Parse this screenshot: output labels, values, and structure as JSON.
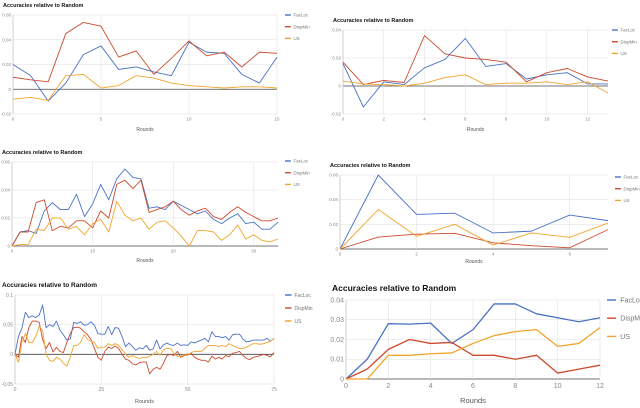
{
  "colors": {
    "FacLoc": "#4a72c4",
    "DispMin": "#cc4b2e",
    "US": "#f2a52e"
  },
  "chart_data": [
    {
      "type": "line",
      "title": "Accuracies relative to Random",
      "xlabel": "Rounds",
      "ylabel": "",
      "xlim": [
        0,
        15
      ],
      "ylim": [
        -0.02,
        0.06
      ],
      "xticks": [
        0,
        5,
        10,
        15
      ],
      "yticks": [
        -0.02,
        0,
        0.02,
        0.04,
        0.06
      ],
      "grid": true,
      "legend": "right",
      "x": [
        0,
        1,
        2,
        3,
        4,
        5,
        6,
        7,
        8,
        9,
        10,
        11,
        12,
        13,
        14,
        15
      ],
      "series": [
        {
          "name": "FacLoc",
          "values": [
            0.02,
            0.011,
            -0.0095,
            0.005,
            0.028,
            0.035,
            0.016,
            0.018,
            0.014,
            0.011,
            0.038,
            0.03,
            0.029,
            0.012,
            0.005,
            0.026
          ]
        },
        {
          "name": "DispMin",
          "values": [
            0.0097,
            0.0076,
            0.006,
            0.045,
            0.054,
            0.051,
            0.026,
            0.031,
            0.012,
            0.025,
            0.039,
            0.027,
            0.03,
            0.018,
            0.03,
            0.029
          ]
        },
        {
          "name": "US",
          "values": [
            -0.008,
            -0.0065,
            -0.009,
            0.011,
            0.012,
            0.001,
            0.003,
            0.011,
            0.009,
            0.005,
            0.003,
            0.002,
            0.001,
            0.002,
            0.002,
            0.001
          ]
        }
      ]
    },
    {
      "type": "line",
      "title": "Accuracies relative to Random",
      "xlabel": "Rounds",
      "ylabel": "",
      "xlim": [
        0,
        13
      ],
      "ylim": [
        -0.02,
        0.04
      ],
      "xticks": [
        0,
        2,
        4,
        6,
        8,
        10,
        12
      ],
      "yticks": [
        -0.02,
        0,
        0.02,
        0.04
      ],
      "grid": true,
      "legend": "right",
      "x": [
        0,
        1,
        2,
        3,
        4,
        5,
        6,
        7,
        8,
        9,
        10,
        11,
        12,
        13
      ],
      "series": [
        {
          "name": "FacLoc",
          "values": [
            0.016,
            -0.015,
            0.003,
            0.001,
            0.013,
            0.019,
            0.034,
            0.014,
            0.016,
            0.005,
            0.008,
            0.0095,
            0.0015,
            0.0015
          ]
        },
        {
          "name": "DispMin",
          "values": [
            0.017,
            0.001,
            0.004,
            0.0025,
            0.036,
            0.023,
            0.02,
            0.019,
            0.017,
            0.003,
            0.0095,
            0.0125,
            0.0065,
            0.0035
          ]
        },
        {
          "name": "US",
          "values": [
            0.0035,
            0.0015,
            0.001,
            0,
            0.002,
            0.006,
            0.008,
            0.001,
            0.002,
            0.002,
            0.003,
            0.001,
            0.003,
            -0.005
          ]
        }
      ]
    },
    {
      "type": "line",
      "title": "Accuracies relative to Random",
      "xlabel": "Rounds",
      "ylabel": "",
      "xlim": [
        0,
        33
      ],
      "ylim": [
        0,
        0.06
      ],
      "xticks": [
        0,
        10,
        20,
        30
      ],
      "yticks": [
        0,
        0.02,
        0.04,
        0.06
      ],
      "grid": true,
      "legend": "right",
      "x": [
        0,
        1,
        2,
        3,
        4,
        5,
        6,
        7,
        8,
        9,
        10,
        11,
        12,
        13,
        14,
        15,
        16,
        17,
        18,
        19,
        20,
        21,
        22,
        23,
        24,
        25,
        26,
        27,
        28,
        29,
        30,
        31,
        32,
        33
      ],
      "series": [
        {
          "name": "FacLoc",
          "values": [
            0,
            0.01,
            0.011,
            0.009,
            0.025,
            0.031,
            0.026,
            0.026,
            0.037,
            0.021,
            0.03,
            0.044,
            0.033,
            0.048,
            0.055,
            0.049,
            0.048,
            0.027,
            0.028,
            0.026,
            0.032,
            0.029,
            0.026,
            0.023,
            0.025,
            0.019,
            0.016,
            0.02,
            0.023,
            0.016,
            0.017,
            0.012,
            0.012,
            0.017
          ]
        },
        {
          "name": "DispMin",
          "values": [
            0,
            0.01,
            0.01,
            0.031,
            0.033,
            0.011,
            0.014,
            0.013,
            0.018,
            0.018,
            0.013,
            0.025,
            0.02,
            0.044,
            0.047,
            0.041,
            0.047,
            0.024,
            0.026,
            0.028,
            0.032,
            0.026,
            0.022,
            0.025,
            0.027,
            0.021,
            0.019,
            0.024,
            0.028,
            0.024,
            0.021,
            0.018,
            0.018,
            0.02
          ]
        },
        {
          "name": "US",
          "values": [
            0,
            0.001,
            0.001,
            0.012,
            0.011,
            0.02,
            0.02,
            0.012,
            0.014,
            0.008,
            0.016,
            0.019,
            0.01,
            0.032,
            0.022,
            0.018,
            0.02,
            0.012,
            0.017,
            0.018,
            0.013,
            0.007,
            0,
            0.011,
            0.011,
            0.01,
            0.004,
            0.008,
            0.015,
            0.005,
            0.008,
            0.004,
            0.003,
            0.005
          ]
        }
      ]
    },
    {
      "type": "line",
      "title": "Accuracies relative to Random",
      "xlabel": "Rounds",
      "ylabel": "",
      "xlim": [
        0,
        7
      ],
      "ylim": [
        0,
        0.06
      ],
      "xticks": [
        0,
        2,
        4,
        6
      ],
      "yticks": [
        0,
        0.02,
        0.04,
        0.06
      ],
      "grid": true,
      "legend": "right",
      "x": [
        0,
        1,
        2,
        3,
        4,
        5,
        6,
        7
      ],
      "series": [
        {
          "name": "FacLoc",
          "values": [
            0,
            0.06,
            0.028,
            0.029,
            0.013,
            0.0145,
            0.0275,
            0.023
          ]
        },
        {
          "name": "DispMin",
          "values": [
            0,
            0.0097,
            0.012,
            0.0127,
            0.005,
            0.0027,
            0.001,
            0.0157
          ]
        },
        {
          "name": "US",
          "values": [
            0,
            0.032,
            0.0103,
            0.02,
            0.0032,
            0.013,
            0.0095,
            0.021
          ]
        }
      ]
    },
    {
      "type": "line",
      "title": "Accuracies relative to Random",
      "xlabel": "Rounds",
      "ylabel": "",
      "xlim": [
        0,
        75
      ],
      "ylim": [
        -0.05,
        0.1
      ],
      "xticks": [
        0,
        25,
        50,
        75
      ],
      "yticks": [
        -0.05,
        0,
        0.05,
        0.1
      ],
      "grid": true,
      "legend": "right",
      "x": [
        0,
        1,
        2,
        3,
        4,
        5,
        6,
        7,
        8,
        9,
        10,
        11,
        12,
        13,
        14,
        15,
        16,
        17,
        18,
        19,
        20,
        21,
        22,
        23,
        24,
        25,
        26,
        27,
        28,
        29,
        30,
        31,
        32,
        33,
        34,
        35,
        36,
        37,
        38,
        39,
        40,
        41,
        42,
        43,
        44,
        45,
        46,
        47,
        48,
        49,
        50,
        51,
        52,
        53,
        54,
        55,
        56,
        57,
        58,
        59,
        60,
        61,
        62,
        63,
        64,
        65,
        66,
        67,
        68,
        69,
        70,
        71,
        72,
        73,
        74,
        75
      ],
      "series": [
        {
          "name": "FacLoc",
          "values": [
            0,
            0.03,
            0.044,
            0.071,
            0.062,
            0.065,
            0.062,
            0.066,
            0.083,
            0.045,
            0.05,
            0.047,
            0.056,
            0.041,
            0.033,
            0.024,
            0.026,
            0.054,
            0.052,
            0.055,
            0.049,
            0.05,
            0.055,
            0.049,
            0.035,
            0.034,
            0.034,
            0.047,
            0.033,
            0.045,
            0.044,
            0.03,
            0.013,
            0.019,
            0.013,
            0.007,
            0.011,
            0.009,
            0.015,
            0.007,
            0.009,
            0.024,
            0.009,
            0.016,
            0.019,
            0.016,
            0.015,
            0.019,
            0.015,
            0.016,
            0.015,
            0.021,
            0.019,
            0.022,
            0.024,
            0.027,
            0.021,
            0.038,
            0.03,
            0.03,
            0.028,
            0.03,
            0.024,
            0.033,
            0.034,
            0.034,
            0.026,
            0.021,
            0.022,
            0.024,
            0.024,
            0.024,
            0.024,
            0.027,
            0.022,
            0.027
          ]
        },
        {
          "name": "DispMin",
          "values": [
            0,
            -0.005,
            0.03,
            0.02,
            0.045,
            0.056,
            0.056,
            0.054,
            0.025,
            0.01,
            0.02,
            0.004,
            0.012,
            0.005,
            0.003,
            0.02,
            0.035,
            0.045,
            0.046,
            0.044,
            0.038,
            0.033,
            0.025,
            0.01,
            -0.005,
            -0.01,
            0.005,
            0.012,
            0.01,
            0.014,
            0.01,
            0,
            -0.008,
            -0.01,
            -0.016,
            -0.018,
            -0.014,
            -0.013,
            -0.013,
            -0.033,
            -0.025,
            -0.022,
            -0.025,
            -0.015,
            -0.002,
            0,
            -0.002,
            0.005,
            -0.005,
            -0.002,
            0,
            0.002,
            -0.005,
            -0.008,
            -0.01,
            -0.01,
            -0.013,
            -0.003,
            -0.008,
            -0.005,
            -0.008,
            -0.002,
            -0.004,
            0.002,
            0.003,
            0.005,
            -0.002,
            -0.007,
            -0.009,
            -0.005,
            -0.004,
            -0.002,
            0,
            -0.002,
            -0.004,
            0.003
          ]
        },
        {
          "name": "US",
          "values": [
            0,
            -0.013,
            0.02,
            0.035,
            0.02,
            0.02,
            0.03,
            0.047,
            0.04,
            0,
            -0.01,
            -0.012,
            -0.005,
            -0.008,
            -0.015,
            -0.02,
            -0.005,
            0.015,
            0.015,
            0.02,
            0.033,
            0.025,
            0.022,
            0.02,
            0.01,
            0.012,
            0.012,
            0.018,
            0.015,
            0.018,
            0.015,
            0.008,
            0,
            -0.005,
            -0.002,
            -0.005,
            -0.007,
            -0.005,
            -0.006,
            -0.003,
            0,
            0.005,
            -0.002,
            0.008,
            0.01,
            0.01,
            0.002,
            -0.004,
            -0.003,
            0,
            -0.002,
            0.003,
            0.005,
            0.005,
            0.005,
            0.01,
            0.015,
            0.015,
            0.015,
            0.013,
            0.015,
            0.013,
            0.018,
            0.015,
            0.012,
            0.01,
            0.01,
            0.012,
            0.015,
            0.018,
            0.018,
            0.017,
            0.018,
            0.02,
            0.022,
            0.027
          ]
        }
      ]
    },
    {
      "type": "line",
      "title": "Accuracies relative to Random",
      "xlabel": "Rounds",
      "ylabel": "",
      "xlim": [
        0,
        12
      ],
      "ylim": [
        0,
        0.04
      ],
      "xticks": [
        0,
        2,
        4,
        6,
        8,
        10,
        12
      ],
      "yticks": [
        0,
        0.01,
        0.02,
        0.03,
        0.04
      ],
      "grid": true,
      "legend": "right",
      "x": [
        0,
        1,
        2,
        3,
        4,
        5,
        6,
        7,
        8,
        9,
        10,
        11,
        12
      ],
      "series": [
        {
          "name": "FacLoc",
          "values": [
            0,
            0.01,
            0.028,
            0.0278,
            0.0283,
            0.018,
            0.025,
            0.038,
            0.038,
            0.033,
            0.031,
            0.029,
            0.031
          ]
        },
        {
          "name": "DispMin",
          "values": [
            0,
            0.005,
            0.015,
            0.02,
            0.018,
            0.0185,
            0.012,
            0.012,
            0.01,
            0.012,
            0.003,
            0.005,
            0.007
          ]
        },
        {
          "name": "US",
          "values": [
            0,
            0,
            0.012,
            0.012,
            0.0128,
            0.0132,
            0.018,
            0.022,
            0.024,
            0.025,
            0.0165,
            0.018,
            0.026
          ]
        }
      ]
    }
  ]
}
